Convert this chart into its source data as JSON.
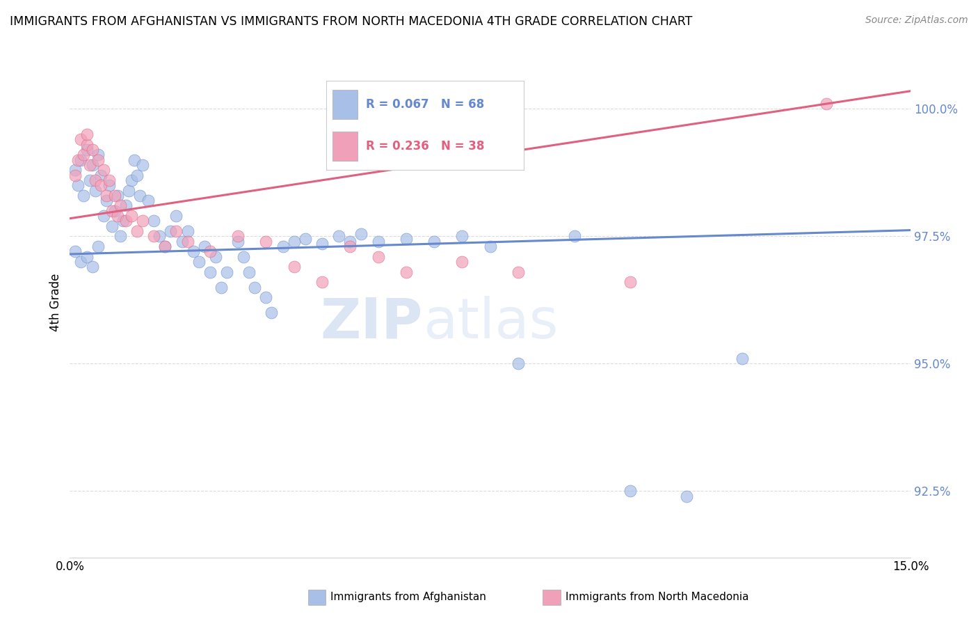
{
  "title": "IMMIGRANTS FROM AFGHANISTAN VS IMMIGRANTS FROM NORTH MACEDONIA 4TH GRADE CORRELATION CHART",
  "source": "Source: ZipAtlas.com",
  "ylabel": "4th Grade",
  "y_ticks": [
    92.5,
    95.0,
    97.5,
    100.0
  ],
  "x_min": 0.0,
  "x_max": 15.0,
  "y_min": 91.2,
  "y_max": 101.2,
  "blue_color": "#6688cc",
  "pink_color": "#e06080",
  "blue_fill": "#a8c0e8",
  "pink_fill": "#f0a0b8",
  "R_blue": 0.067,
  "N_blue": 68,
  "R_pink": 0.236,
  "N_pink": 38,
  "blue_line_x": [
    0.0,
    15.0
  ],
  "blue_line_y": [
    97.15,
    97.62
  ],
  "pink_line_x": [
    0.0,
    15.0
  ],
  "pink_line_y": [
    97.85,
    100.35
  ],
  "watermark": "ZIPatlas",
  "blue_scatter_x": [
    0.1,
    0.15,
    0.2,
    0.25,
    0.3,
    0.35,
    0.4,
    0.45,
    0.5,
    0.55,
    0.6,
    0.65,
    0.7,
    0.75,
    0.8,
    0.85,
    0.9,
    0.95,
    1.0,
    1.05,
    1.1,
    1.15,
    1.2,
    1.25,
    1.3,
    1.4,
    1.5,
    1.6,
    1.7,
    1.8,
    1.9,
    2.0,
    2.1,
    2.2,
    2.3,
    2.4,
    2.5,
    2.6,
    2.7,
    2.8,
    3.0,
    3.1,
    3.2,
    3.3,
    3.5,
    3.6,
    3.8,
    4.0,
    4.2,
    4.5,
    4.8,
    5.0,
    5.2,
    5.5,
    6.0,
    6.5,
    7.0,
    7.5,
    8.0,
    9.0,
    10.0,
    11.0,
    12.0,
    0.1,
    0.2,
    0.3,
    0.4,
    0.5
  ],
  "blue_scatter_y": [
    98.8,
    98.5,
    99.0,
    98.3,
    99.2,
    98.6,
    98.9,
    98.4,
    99.1,
    98.7,
    97.9,
    98.2,
    98.5,
    97.7,
    98.0,
    98.3,
    97.5,
    97.8,
    98.1,
    98.4,
    98.6,
    99.0,
    98.7,
    98.3,
    98.9,
    98.2,
    97.8,
    97.5,
    97.3,
    97.6,
    97.9,
    97.4,
    97.6,
    97.2,
    97.0,
    97.3,
    96.8,
    97.1,
    96.5,
    96.8,
    97.4,
    97.1,
    96.8,
    96.5,
    96.3,
    96.0,
    97.3,
    97.4,
    97.45,
    97.35,
    97.5,
    97.4,
    97.55,
    97.4,
    97.45,
    97.4,
    97.5,
    97.3,
    95.0,
    97.5,
    92.5,
    92.4,
    95.1,
    97.2,
    97.0,
    97.1,
    96.9,
    97.3
  ],
  "pink_scatter_x": [
    0.1,
    0.15,
    0.2,
    0.25,
    0.3,
    0.35,
    0.4,
    0.45,
    0.5,
    0.55,
    0.6,
    0.65,
    0.7,
    0.75,
    0.8,
    0.85,
    0.9,
    1.0,
    1.1,
    1.2,
    1.3,
    1.5,
    1.7,
    1.9,
    2.1,
    2.5,
    3.0,
    3.5,
    4.0,
    4.5,
    5.0,
    5.5,
    6.0,
    7.0,
    8.0,
    10.0,
    13.5,
    0.3
  ],
  "pink_scatter_y": [
    98.7,
    99.0,
    99.4,
    99.1,
    99.3,
    98.9,
    99.2,
    98.6,
    99.0,
    98.5,
    98.8,
    98.3,
    98.6,
    98.0,
    98.3,
    97.9,
    98.1,
    97.8,
    97.9,
    97.6,
    97.8,
    97.5,
    97.3,
    97.6,
    97.4,
    97.2,
    97.5,
    97.4,
    96.9,
    96.6,
    97.3,
    97.1,
    96.8,
    97.0,
    96.8,
    96.6,
    100.1,
    99.5
  ]
}
